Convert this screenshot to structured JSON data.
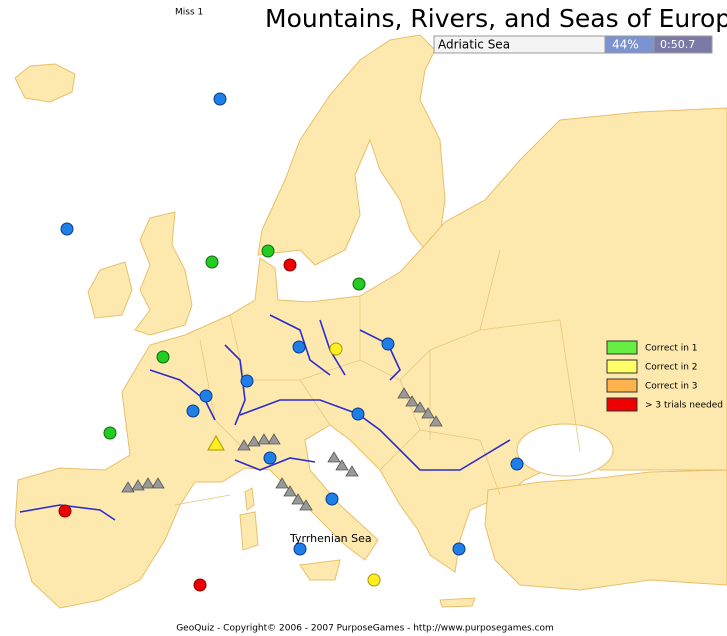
{
  "header": {
    "miss": "Miss 1",
    "title": "Mountains, Rivers, and Seas of Europe"
  },
  "status": {
    "question": "Adriatic Sea",
    "progress": "44%",
    "timer": "0:50.7"
  },
  "legend": [
    "Correct in 1",
    "Correct in 2",
    "Correct in 3",
    "> 3 trials needed"
  ],
  "map": {
    "label": "Tyrrhenian Sea"
  },
  "footer": "GeoQuiz - Copyright© 2006 - 2007 PurposeGames - http://www.purposegames.com"
}
